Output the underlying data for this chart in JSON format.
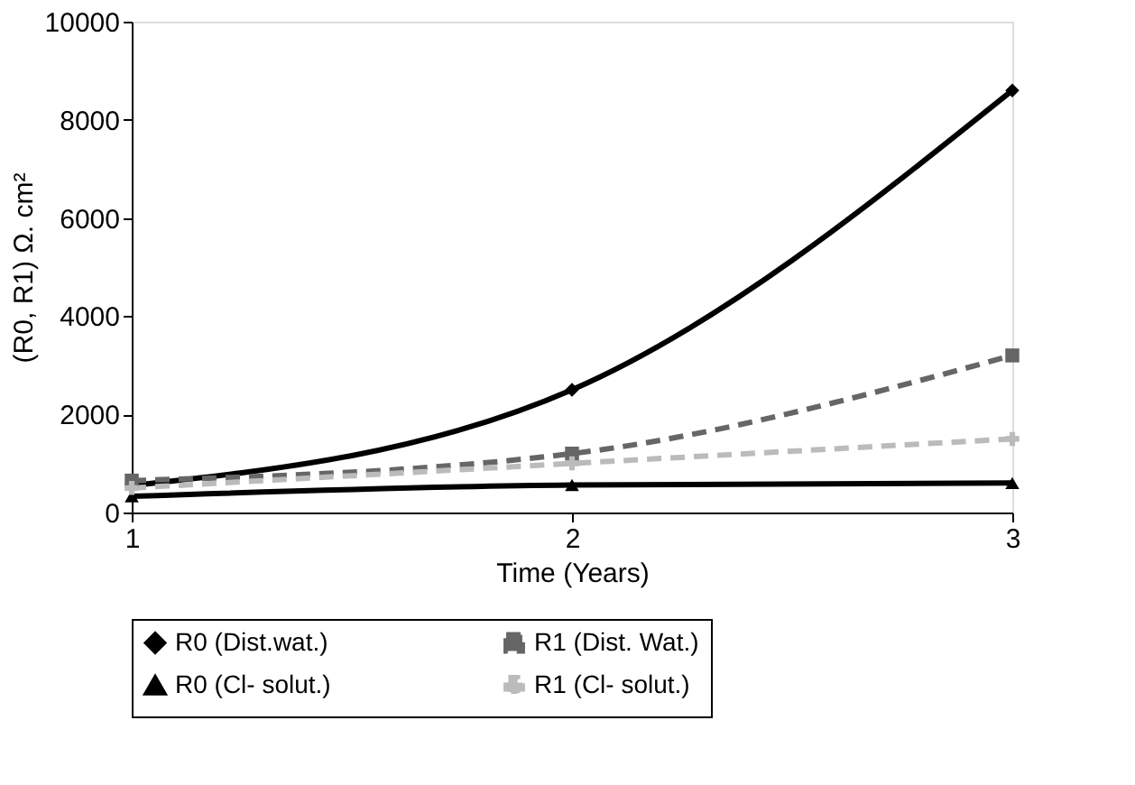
{
  "chart_data": {
    "type": "line",
    "xlabel": "Time (Years)",
    "ylabel": "(R0, R1) Ω. cm²",
    "x": [
      1,
      2,
      3
    ],
    "xlim": [
      1,
      3
    ],
    "xticks": [
      1,
      2,
      3
    ],
    "ylim": [
      0,
      10000
    ],
    "yticks": [
      0,
      2000,
      4000,
      6000,
      8000,
      10000
    ],
    "grid": false,
    "legend": "bottom",
    "series": [
      {
        "name": "R0 (Dist.wat.)",
        "color": "#000000",
        "values": [
          550,
          2500,
          8600
        ],
        "marker": "diamond",
        "line_style": "solid"
      },
      {
        "name": "R1 (Dist. Wat.)",
        "color": "#666666",
        "values": [
          650,
          1200,
          3200
        ],
        "marker": "square",
        "line_style": "dashed"
      },
      {
        "name": "R0 (Cl- solut.)",
        "color": "#000000",
        "values": [
          330,
          560,
          600
        ],
        "marker": "triangle",
        "line_style": "solid"
      },
      {
        "name": "R1 (Cl- solut.)",
        "color": "#bbbbbb",
        "values": [
          500,
          1000,
          1500
        ],
        "marker": "cross",
        "line_style": "dashed"
      }
    ]
  }
}
